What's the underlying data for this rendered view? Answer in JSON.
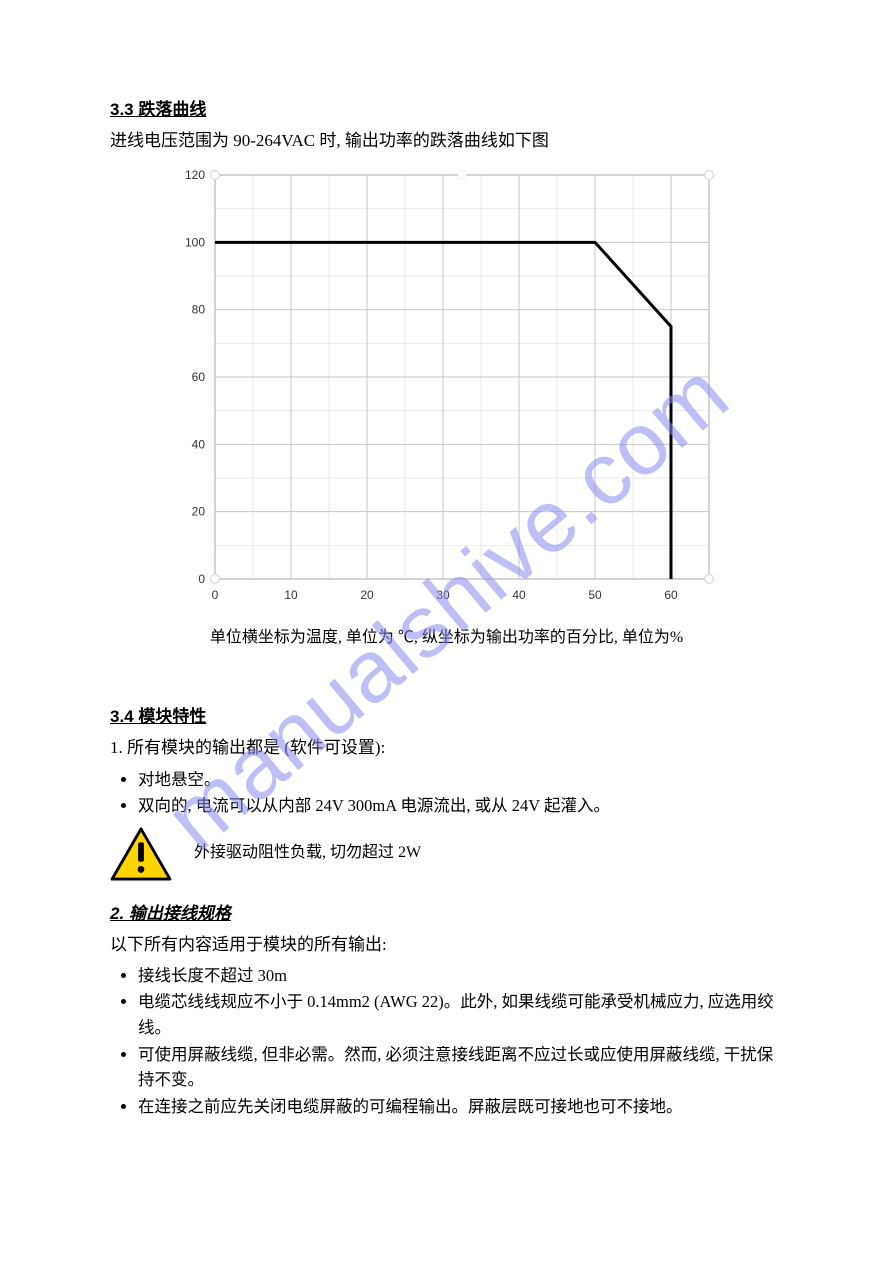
{
  "watermark": {
    "text": "manualshive.com",
    "color": "#8a8cf0",
    "fontsize": 88,
    "rotation_deg": -40,
    "opacity": 0.55
  },
  "derating": {
    "heading": "3.3 跌落曲线",
    "intro": "进线电压范围为 90-264VAC 时, 输出功率的跌落曲线如下图",
    "chart": {
      "type": "line",
      "xlim": [
        0,
        65
      ],
      "xtick_step": 10,
      "ylim": [
        0,
        120
      ],
      "ytick_step": 20,
      "xticks": [
        0,
        10,
        20,
        30,
        40,
        50,
        60
      ],
      "yticks": [
        0,
        20,
        40,
        60,
        80,
        100,
        120
      ],
      "tick_fontsize": 12,
      "tick_color": "#333333",
      "background": "#ffffff",
      "plot_border_color": "#bfbfbf",
      "major_grid_color": "#c4c4c4",
      "minor_grid_color": "#e2e2e2",
      "minor_y_lines": [
        10,
        30,
        50,
        70,
        90,
        110
      ],
      "minor_x_lines": [
        5,
        15,
        25,
        35,
        45,
        55
      ],
      "corner_handle_color": "#d9d9d9",
      "midpoint_handle_color": "#f2f2f2",
      "series": {
        "color": "#000000",
        "width": 3,
        "points_xy": [
          [
            0,
            100
          ],
          [
            50,
            100
          ],
          [
            60,
            75
          ],
          [
            60,
            0
          ]
        ]
      }
    },
    "unit_line": "单位横坐标为温度, 单位为 ℃, 纵坐标为输出功率的百分比, 单位为%"
  },
  "characteristics": {
    "heading": "3.4 模块特性",
    "line1": "1. 所有模块的输出都是 (软件可设置):",
    "bullets1": [
      "对地悬空。",
      "双向的, 电流可以从内部 24V 300mA 电源流出, 或从 24V 起灌入。"
    ],
    "warn_text": "外接驱动阻性负载, 切勿超过 2W",
    "line2_heading": "2. 输出接线规格",
    "line2_text": "以下所有内容适用于模块的所有输出:",
    "bullets2": [
      "接线长度不超过 30m",
      "电缆芯线线规应不小于 0.14mm2 (AWG 22)。此外, 如果线缆可能承受机械应力, 应选用绞线。",
      "可使用屏蔽线缆, 但非必需。然而, 必须注意接线距离不应过长或应使用屏蔽线缆, 干扰保持不变。",
      "在连接之前应先关闭电缆屏蔽的可编程输出。屏蔽层既可接地也可不接地。"
    ]
  }
}
